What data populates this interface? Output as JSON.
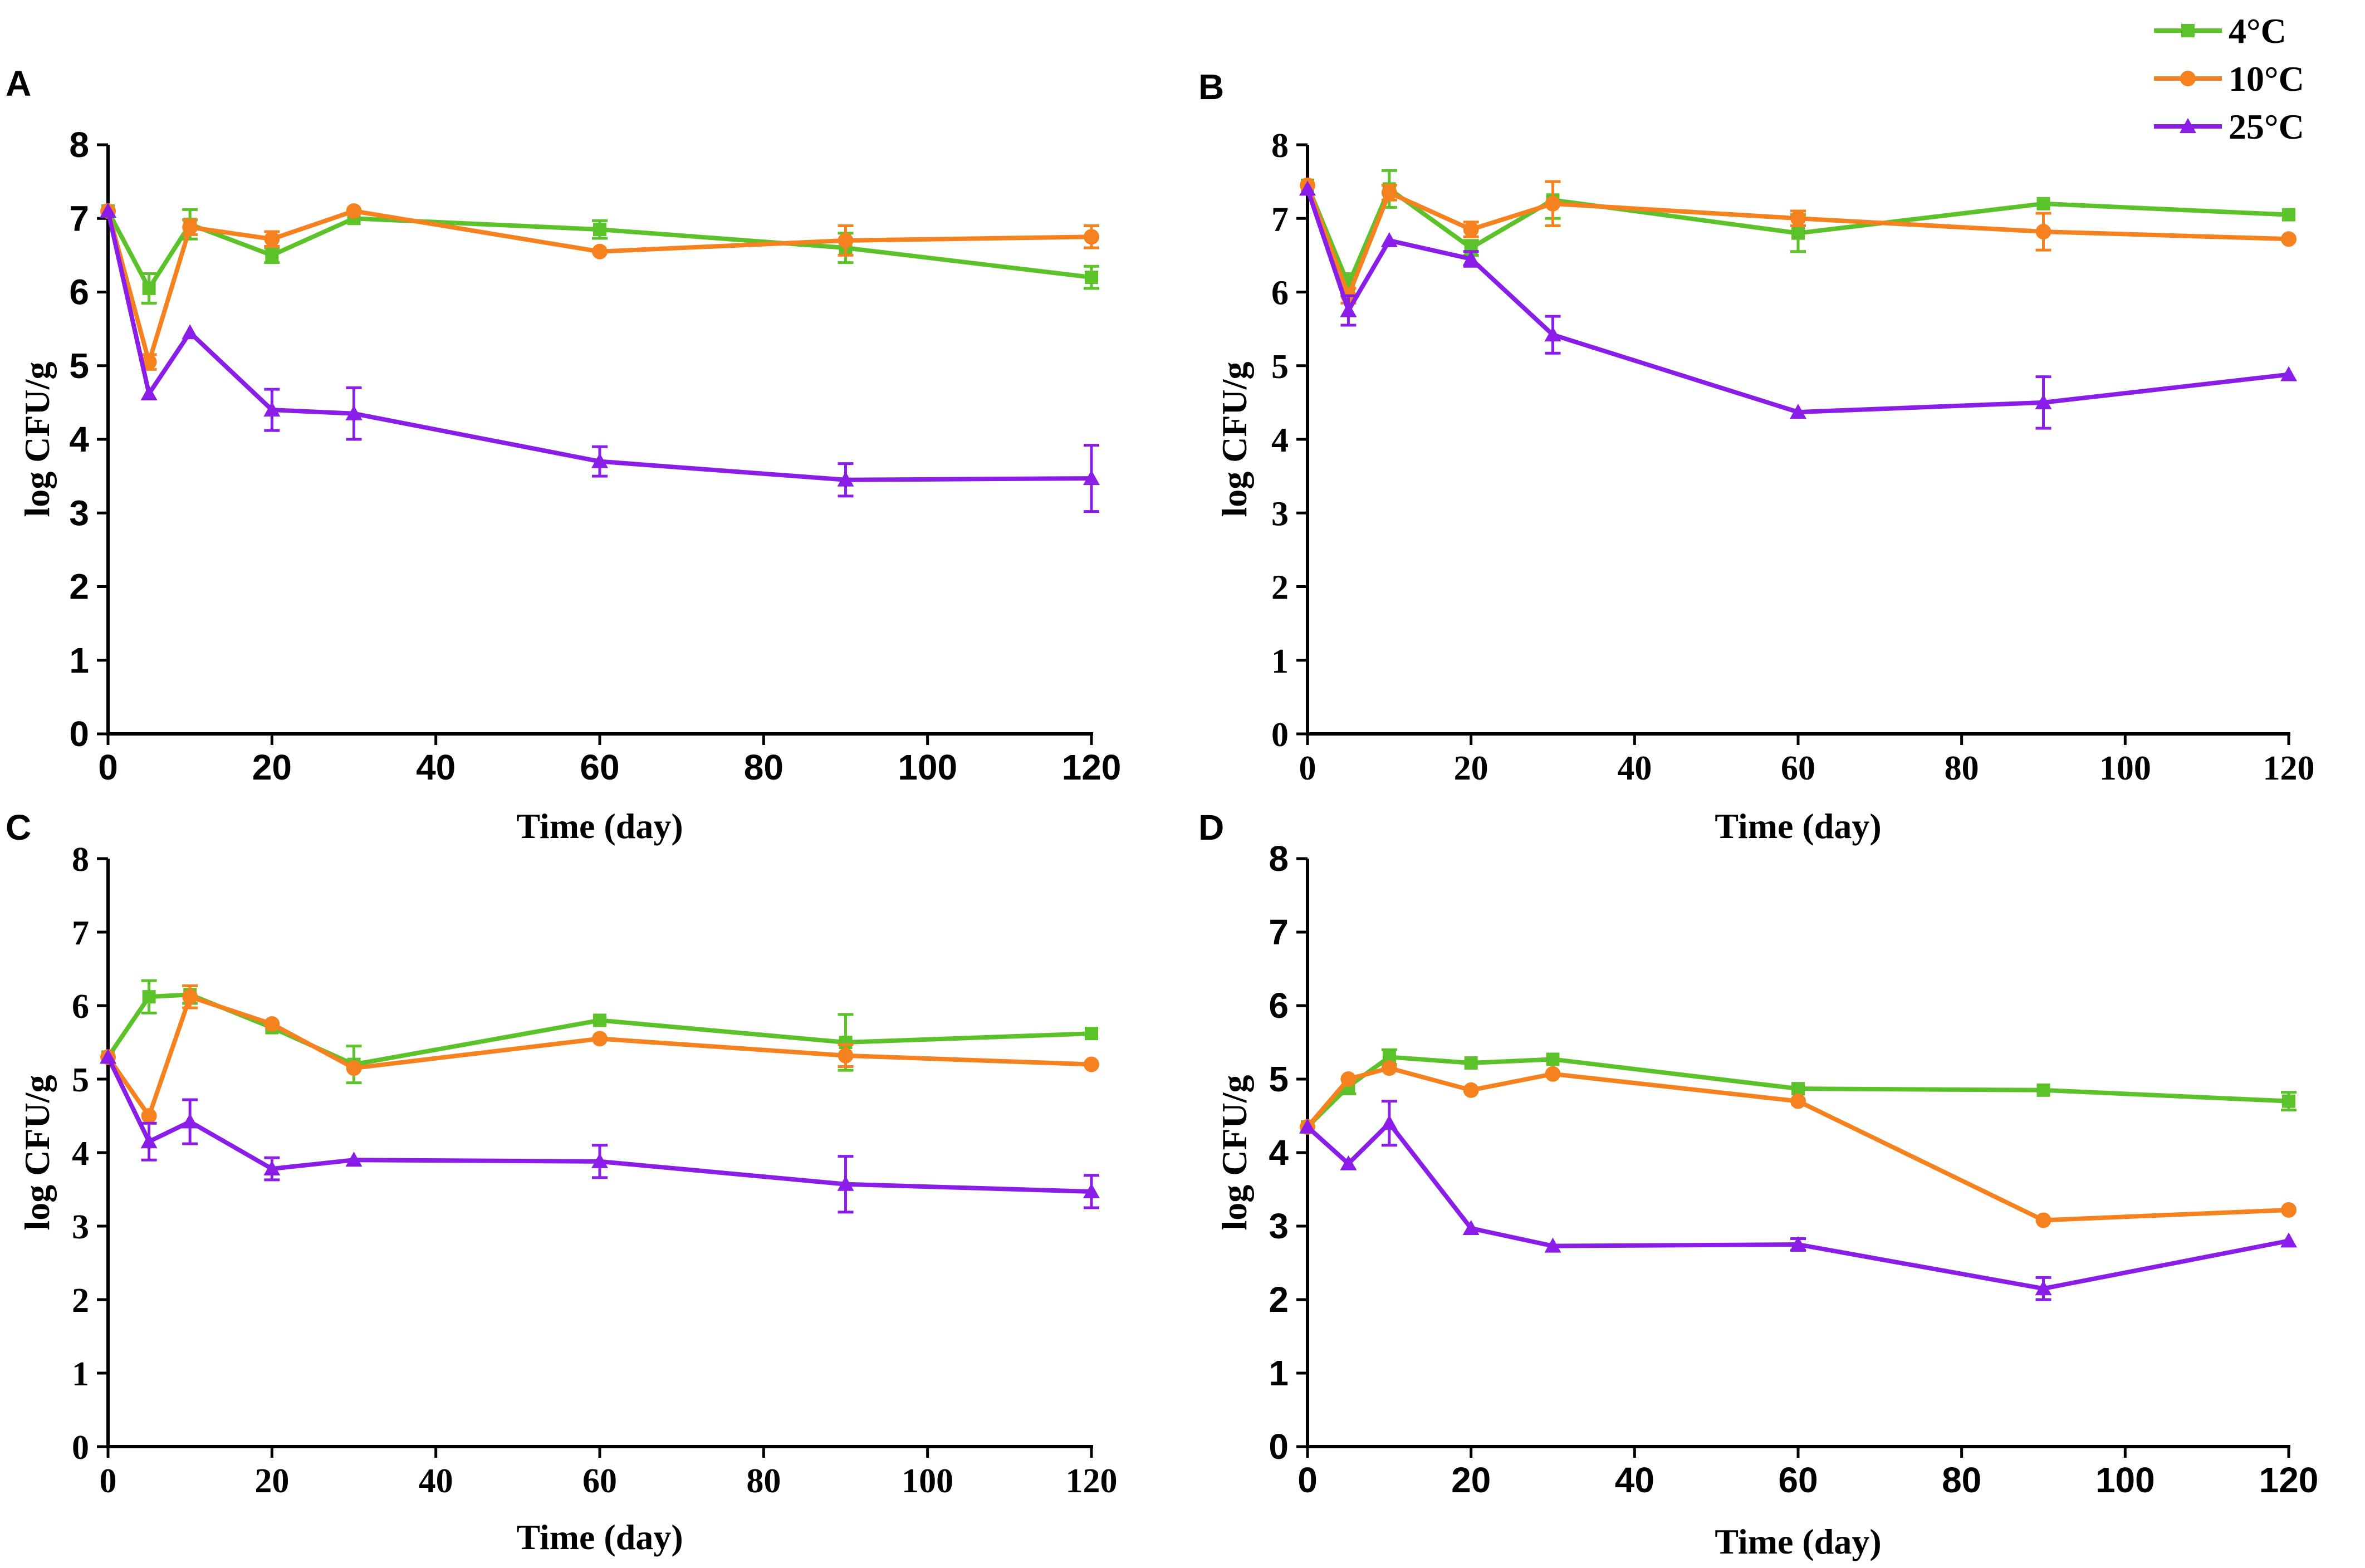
{
  "legend": {
    "entries": [
      {
        "label": "4°C",
        "color": "#5cc22a",
        "marker": "square"
      },
      {
        "label": "10°C",
        "color": "#f5821f",
        "marker": "circle"
      },
      {
        "label": "25°C",
        "color": "#8a1ee8",
        "marker": "triangle"
      }
    ]
  },
  "chart_data": [
    {
      "panel": "A",
      "type": "line",
      "xlabel": "Time (day)",
      "ylabel": "log CFU/g",
      "xlim": [
        0,
        120
      ],
      "ylim": [
        0,
        8
      ],
      "xticks": [
        0,
        20,
        40,
        60,
        80,
        100,
        120
      ],
      "yticks": [
        0,
        1,
        2,
        3,
        4,
        5,
        6,
        7,
        8
      ],
      "x": [
        0,
        5,
        10,
        20,
        30,
        60,
        90,
        120
      ],
      "series": [
        {
          "name": "4°C",
          "values": [
            7.1,
            6.05,
            6.92,
            6.5,
            7.0,
            6.85,
            6.6,
            6.2
          ],
          "errors": [
            0.05,
            0.2,
            0.2,
            0.1,
            0.05,
            0.12,
            0.2,
            0.15
          ]
        },
        {
          "name": "10°C",
          "values": [
            7.1,
            5.05,
            6.88,
            6.72,
            7.1,
            6.55,
            6.7,
            6.75
          ],
          "errors": [
            0.05,
            0.1,
            0.1,
            0.1,
            0.05,
            0.05,
            0.2,
            0.15
          ]
        },
        {
          "name": "25°C",
          "values": [
            7.1,
            4.62,
            5.45,
            4.4,
            4.35,
            3.7,
            3.45,
            3.47
          ],
          "errors": [
            0.05,
            0.05,
            0.05,
            0.28,
            0.35,
            0.2,
            0.22,
            0.45
          ]
        }
      ]
    },
    {
      "panel": "B",
      "type": "line",
      "xlabel": "Time (day)",
      "ylabel": "log CFU/g",
      "xlim": [
        0,
        120
      ],
      "ylim": [
        0,
        8
      ],
      "xticks": [
        0,
        20,
        40,
        60,
        80,
        100,
        120
      ],
      "yticks": [
        0,
        1,
        2,
        3,
        4,
        5,
        6,
        7,
        8
      ],
      "x": [
        0,
        5,
        10,
        20,
        30,
        60,
        90,
        120
      ],
      "series": [
        {
          "name": "4°C",
          "values": [
            7.45,
            6.1,
            7.4,
            6.6,
            7.25,
            6.8,
            7.2,
            7.05
          ],
          "errors": [
            0.05,
            0.15,
            0.25,
            0.1,
            0.25,
            0.25,
            0.05,
            0.05
          ]
        },
        {
          "name": "10°C",
          "values": [
            7.45,
            5.95,
            7.35,
            6.85,
            7.2,
            7.0,
            6.82,
            6.72
          ],
          "errors": [
            0.05,
            0.1,
            0.1,
            0.1,
            0.3,
            0.1,
            0.25,
            0.05
          ]
        },
        {
          "name": "25°C",
          "values": [
            7.4,
            5.75,
            6.7,
            6.45,
            5.42,
            4.37,
            4.5,
            4.88
          ],
          "errors": [
            0.05,
            0.2,
            0.05,
            0.1,
            0.25,
            0.05,
            0.35,
            0.05
          ]
        }
      ]
    },
    {
      "panel": "C",
      "type": "line",
      "xlabel": "Time (day)",
      "ylabel": "log CFU/g",
      "xlim": [
        0,
        120
      ],
      "ylim": [
        0,
        8
      ],
      "xticks": [
        0,
        20,
        40,
        60,
        80,
        100,
        120
      ],
      "yticks": [
        0,
        1,
        2,
        3,
        4,
        5,
        6,
        7,
        8
      ],
      "x": [
        0,
        5,
        10,
        20,
        30,
        60,
        90,
        120
      ],
      "series": [
        {
          "name": "4°C",
          "values": [
            5.3,
            6.12,
            6.15,
            5.7,
            5.2,
            5.8,
            5.5,
            5.62
          ],
          "errors": [
            0.05,
            0.22,
            0.12,
            0.05,
            0.25,
            0.05,
            0.38,
            0.05
          ]
        },
        {
          "name": "10°C",
          "values": [
            5.3,
            4.5,
            6.12,
            5.75,
            5.15,
            5.55,
            5.32,
            5.2
          ],
          "errors": [
            0.05,
            0.05,
            0.15,
            0.05,
            0.05,
            0.05,
            0.15,
            0.05
          ]
        },
        {
          "name": "25°C",
          "values": [
            5.3,
            4.15,
            4.42,
            3.78,
            3.9,
            3.88,
            3.57,
            3.47
          ],
          "errors": [
            0.05,
            0.25,
            0.3,
            0.15,
            0.05,
            0.22,
            0.38,
            0.22
          ]
        }
      ]
    },
    {
      "panel": "D",
      "type": "line",
      "xlabel": "Time (day)",
      "ylabel": "log CFU/g",
      "xlim": [
        0,
        120
      ],
      "ylim": [
        0,
        8
      ],
      "xticks": [
        0,
        20,
        40,
        60,
        80,
        100,
        120
      ],
      "yticks": [
        0,
        1,
        2,
        3,
        4,
        5,
        6,
        7,
        8
      ],
      "x": [
        0,
        5,
        10,
        20,
        30,
        60,
        90,
        120
      ],
      "series": [
        {
          "name": "4°C",
          "values": [
            4.35,
            4.9,
            5.3,
            5.22,
            5.27,
            4.87,
            4.85,
            4.7
          ],
          "errors": [
            0.05,
            0.1,
            0.1,
            0.05,
            0.05,
            0.05,
            0.05,
            0.12
          ]
        },
        {
          "name": "10°C",
          "values": [
            4.35,
            5.0,
            5.15,
            4.85,
            5.07,
            4.7,
            3.08,
            3.22
          ],
          "errors": [
            0.05,
            0.05,
            0.05,
            0.05,
            0.05,
            0.05,
            0.05,
            0.05
          ]
        },
        {
          "name": "25°C",
          "values": [
            4.35,
            3.85,
            4.4,
            2.97,
            2.73,
            2.75,
            2.15,
            2.8
          ],
          "errors": [
            0.05,
            0.05,
            0.3,
            0.05,
            0.05,
            0.08,
            0.15,
            0.05
          ]
        }
      ]
    }
  ]
}
